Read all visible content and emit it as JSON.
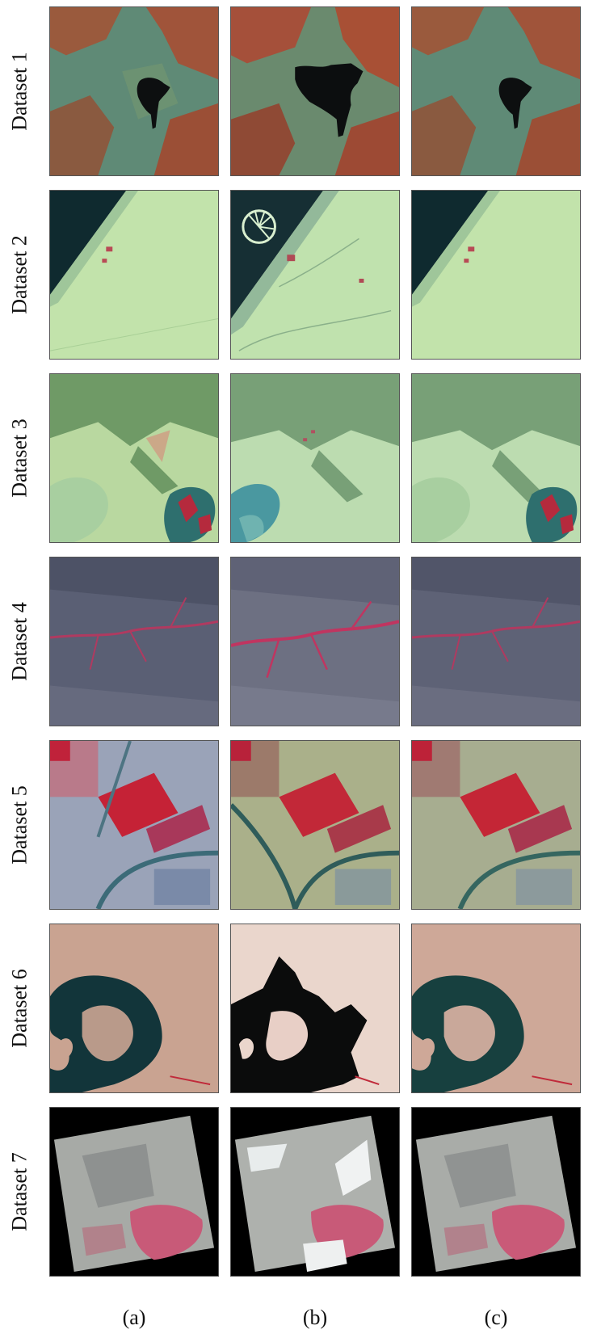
{
  "rows": [
    {
      "label": "Dataset 1"
    },
    {
      "label": "Dataset 2"
    },
    {
      "label": "Dataset 3"
    },
    {
      "label": "Dataset 4"
    },
    {
      "label": "Dataset 5"
    },
    {
      "label": "Dataset 6"
    },
    {
      "label": "Dataset 7"
    }
  ],
  "columns": [
    {
      "label": "(a)"
    },
    {
      "label": "(b)"
    },
    {
      "label": "(c)"
    }
  ],
  "colors": {
    "background": "#ffffff",
    "tile_border": "#555555",
    "water_dark": "#0e1416",
    "vegetation_red": "#b3263a",
    "desert_green": "#bfe0a8",
    "cyan_land": "#4f8a7e"
  }
}
